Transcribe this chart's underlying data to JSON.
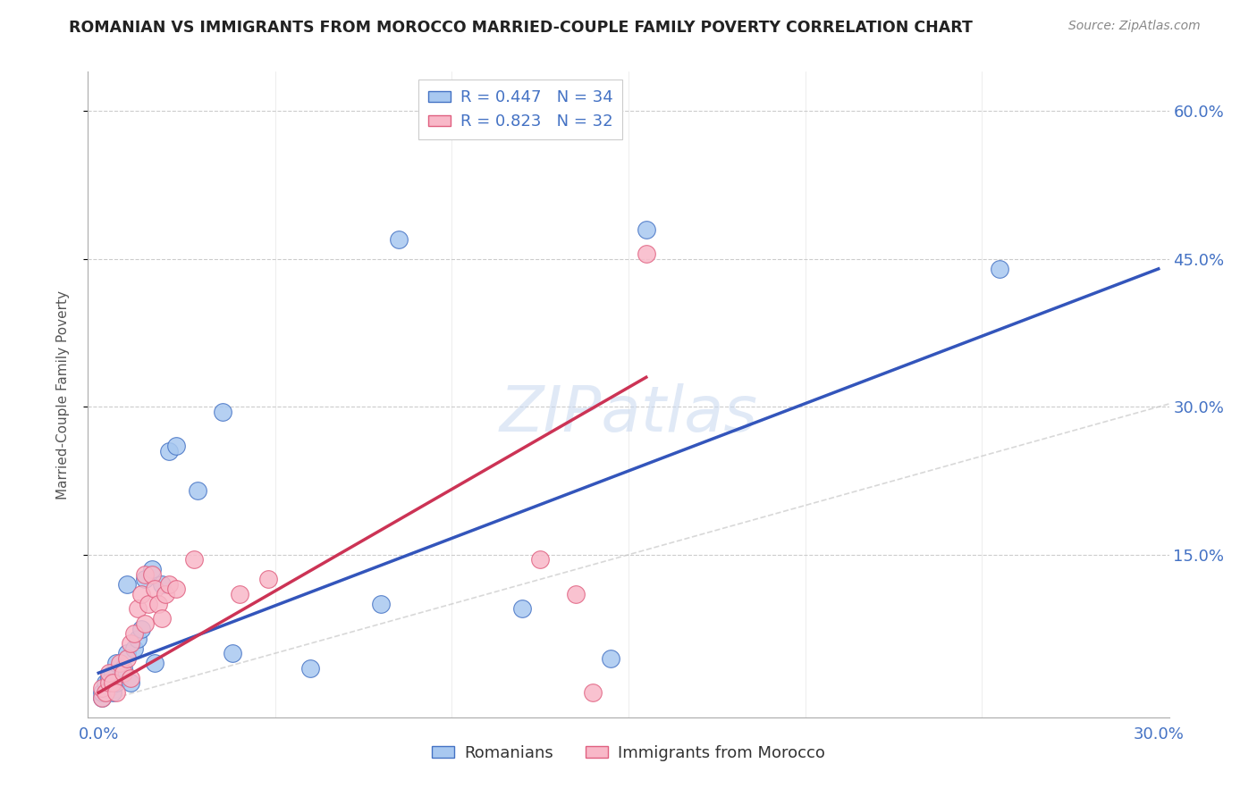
{
  "title": "ROMANIAN VS IMMIGRANTS FROM MOROCCO MARRIED-COUPLE FAMILY POVERTY CORRELATION CHART",
  "source": "Source: ZipAtlas.com",
  "ylabel": "Married-Couple Family Poverty",
  "xlim": [
    0.0,
    0.3
  ],
  "ylim": [
    0.0,
    0.64
  ],
  "ytick_positions": [
    0.15,
    0.3,
    0.45,
    0.6
  ],
  "ytick_labels": [
    "15.0%",
    "30.0%",
    "45.0%",
    "60.0%"
  ],
  "xtick_positions": [
    0.0,
    0.05,
    0.1,
    0.15,
    0.2,
    0.25,
    0.3
  ],
  "xtick_labels_show": [
    "0.0%",
    "",
    "",
    "",
    "",
    "",
    "30.0%"
  ],
  "legend1_R": "0.447",
  "legend1_N": "34",
  "legend2_R": "0.823",
  "legend2_N": "32",
  "legend1_label": "Romanians",
  "legend2_label": "Immigrants from Morocco",
  "color_romanian_fill": "#A8C8F0",
  "color_romanian_edge": "#4472C4",
  "color_moroccan_fill": "#F8B8C8",
  "color_moroccan_edge": "#E06080",
  "color_romanian_line": "#3355BB",
  "color_moroccan_line": "#CC3355",
  "color_diagonal": "#C8C8C8",
  "color_tick_labels": "#4472C4",
  "ro_line_x0": 0.0,
  "ro_line_y0": 0.03,
  "ro_line_x1": 0.3,
  "ro_line_y1": 0.44,
  "mo_line_x0": 0.0,
  "mo_line_y0": 0.01,
  "mo_line_x1": 0.155,
  "mo_line_y1": 0.33,
  "romanian_x": [
    0.001,
    0.001,
    0.002,
    0.002,
    0.003,
    0.003,
    0.004,
    0.004,
    0.005,
    0.005,
    0.006,
    0.007,
    0.008,
    0.008,
    0.009,
    0.01,
    0.011,
    0.012,
    0.013,
    0.015,
    0.016,
    0.018,
    0.02,
    0.022,
    0.028,
    0.035,
    0.038,
    0.06,
    0.08,
    0.085,
    0.12,
    0.145,
    0.155,
    0.255
  ],
  "romanian_y": [
    0.005,
    0.01,
    0.01,
    0.02,
    0.015,
    0.025,
    0.01,
    0.03,
    0.02,
    0.04,
    0.025,
    0.035,
    0.12,
    0.05,
    0.02,
    0.055,
    0.065,
    0.075,
    0.125,
    0.135,
    0.04,
    0.12,
    0.255,
    0.26,
    0.215,
    0.295,
    0.05,
    0.035,
    0.1,
    0.47,
    0.095,
    0.045,
    0.48,
    0.44
  ],
  "moroccan_x": [
    0.001,
    0.001,
    0.002,
    0.003,
    0.003,
    0.004,
    0.005,
    0.006,
    0.007,
    0.008,
    0.009,
    0.009,
    0.01,
    0.011,
    0.012,
    0.013,
    0.013,
    0.014,
    0.015,
    0.016,
    0.017,
    0.018,
    0.019,
    0.02,
    0.022,
    0.027,
    0.04,
    0.048,
    0.125,
    0.135,
    0.14,
    0.155
  ],
  "moroccan_y": [
    0.005,
    0.015,
    0.01,
    0.02,
    0.03,
    0.02,
    0.01,
    0.04,
    0.03,
    0.045,
    0.025,
    0.06,
    0.07,
    0.095,
    0.11,
    0.13,
    0.08,
    0.1,
    0.13,
    0.115,
    0.1,
    0.085,
    0.11,
    0.12,
    0.115,
    0.145,
    0.11,
    0.125,
    0.145,
    0.11,
    0.01,
    0.455
  ]
}
